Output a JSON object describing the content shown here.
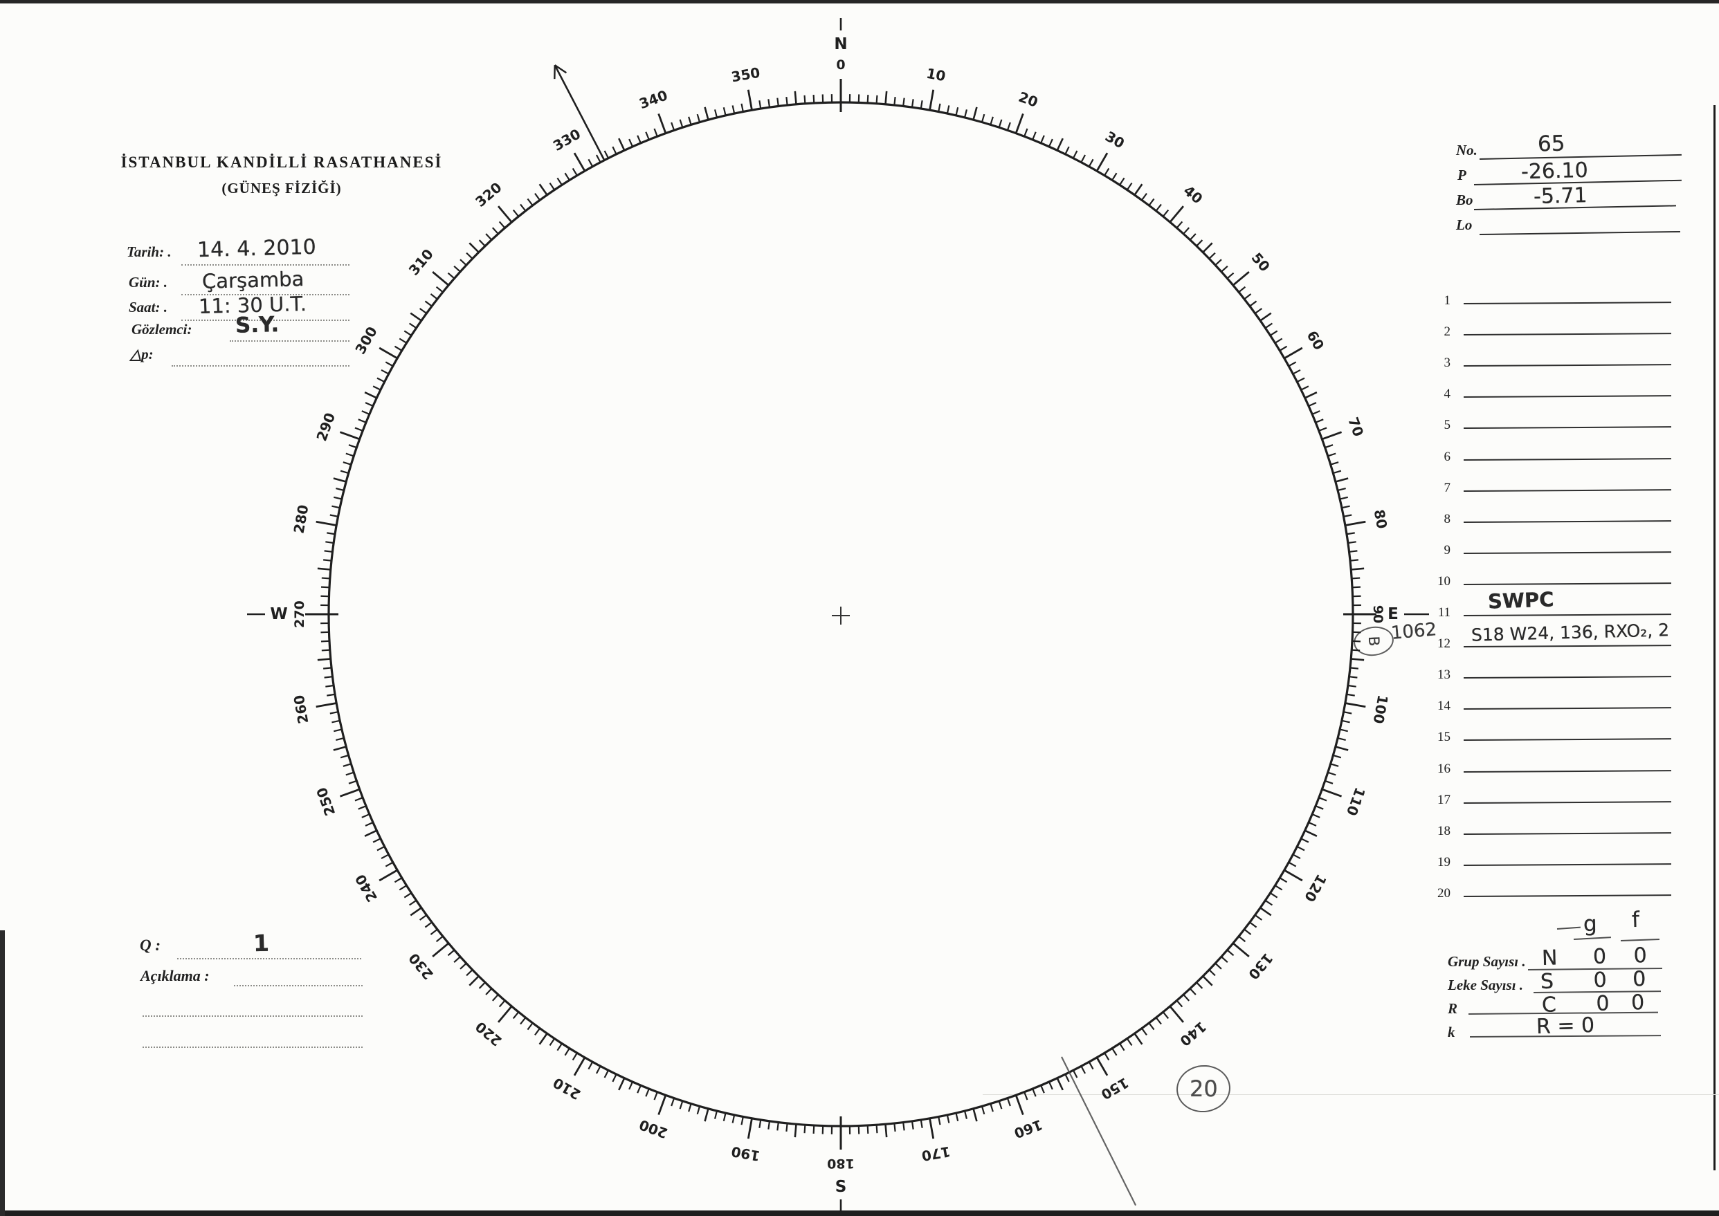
{
  "page": {
    "title_line1": "İSTANBUL KANDİLLİ RASATHANESİ",
    "title_line2": "(GÜNEŞ FİZİĞİ)"
  },
  "observation": {
    "fields": [
      {
        "id": "tarih",
        "label": "Tarih: .",
        "value": "14. 4. 2010"
      },
      {
        "id": "gun",
        "label": "Gün: .",
        "value": "Çarşamba"
      },
      {
        "id": "saat",
        "label": "Saat: .",
        "value": "11: 30  U.T."
      },
      {
        "id": "gozlemci",
        "label": "Gözlemci:",
        "value": "S.Y."
      },
      {
        "id": "delta-p",
        "label": "△p:",
        "value": ""
      }
    ]
  },
  "dial": {
    "cardinal_north": "N",
    "cardinal_south": "S",
    "cardinal_east": "E",
    "cardinal_west": "W",
    "degree_labels": [
      "0",
      "10",
      "20",
      "30",
      "40",
      "50",
      "60",
      "70",
      "80",
      "90",
      "100",
      "110",
      "120",
      "130",
      "140",
      "150",
      "160",
      "170",
      "180",
      "190",
      "200",
      "210",
      "220",
      "230",
      "240",
      "250",
      "260",
      "270",
      "280",
      "290",
      "300",
      "310",
      "320",
      "330",
      "340",
      "350"
    ]
  },
  "solar_params": [
    {
      "label": "No.",
      "value": "65"
    },
    {
      "label": "P",
      "value": "-26.10"
    },
    {
      "label": "Bo",
      "value": "-5.71"
    },
    {
      "label": "Lo",
      "value": ""
    }
  ],
  "region_rows": {
    "numbers": [
      "1",
      "2",
      "3",
      "4",
      "5",
      "6",
      "7",
      "8",
      "9",
      "10",
      "11",
      "12",
      "13",
      "14",
      "15",
      "16",
      "17",
      "18",
      "19",
      "20"
    ],
    "entries": {
      "11": "SWPC",
      "12": "S18 W24, 136, RXO₂, 2"
    }
  },
  "margin_annotations": {
    "circled_letter": "B",
    "region_number": "1062",
    "circled_number": "20"
  },
  "quality": {
    "q_label": "Q :",
    "q_value": "1",
    "aciklama_label": "Açıklama :"
  },
  "counts": {
    "col_g": "g",
    "col_f": "f",
    "rows": [
      {
        "label": "Grup Sayısı .",
        "hand": "N",
        "g": "0",
        "f": "0"
      },
      {
        "label": "Leke Sayısı .",
        "hand": "S",
        "g": "0",
        "f": "0"
      },
      {
        "label": "R",
        "hand": "C",
        "g": "0",
        "f": "0"
      },
      {
        "label": "k",
        "hand": "R = 0",
        "g": "",
        "f": ""
      }
    ]
  }
}
